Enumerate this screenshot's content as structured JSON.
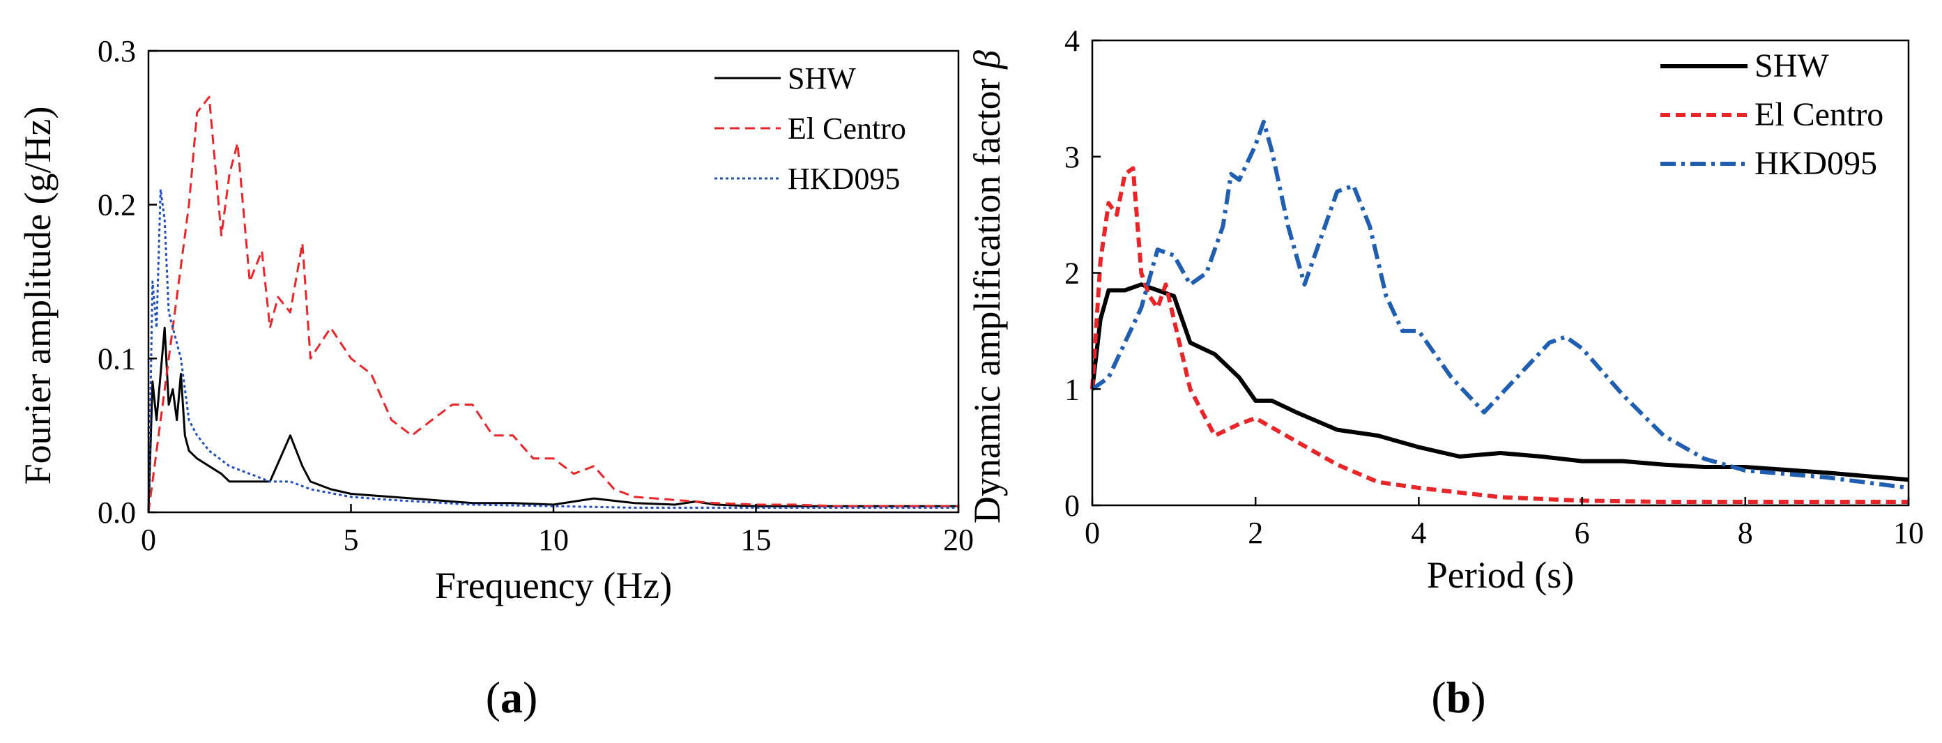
{
  "chart_data": [
    {
      "id": "a",
      "type": "line",
      "panel_label": "a",
      "title": "",
      "xlabel": "Frequency (Hz)",
      "ylabel": "Fourier amplitude (g/Hz)",
      "xlim": [
        0,
        20
      ],
      "ylim": [
        0,
        0.3
      ],
      "xticks": [
        0,
        5,
        10,
        15,
        20
      ],
      "xtick_labels": [
        "0",
        "5",
        "10",
        "15",
        "20"
      ],
      "yticks": [
        0.0,
        0.1,
        0.2,
        0.3
      ],
      "ytick_labels": [
        "0.0",
        "0.1",
        "0.2",
        "0.3"
      ],
      "grid": false,
      "legend_position": "top-right",
      "series": [
        {
          "name": "SHW",
          "color": "#000000",
          "style": "solid",
          "x": [
            0,
            0.1,
            0.2,
            0.3,
            0.4,
            0.5,
            0.6,
            0.7,
            0.8,
            0.9,
            1.0,
            1.2,
            1.5,
            1.8,
            2.0,
            2.5,
            3.0,
            3.5,
            3.8,
            4.0,
            4.5,
            5.0,
            6.0,
            7.0,
            8.0,
            9.0,
            10.0,
            11.0,
            12.0,
            13.0,
            13.5,
            14.0,
            15.0,
            16.0,
            17.0,
            18.0,
            19.0,
            20.0
          ],
          "y": [
            0.0,
            0.085,
            0.06,
            0.09,
            0.12,
            0.07,
            0.08,
            0.06,
            0.09,
            0.05,
            0.04,
            0.035,
            0.03,
            0.025,
            0.02,
            0.02,
            0.02,
            0.05,
            0.03,
            0.02,
            0.015,
            0.012,
            0.01,
            0.008,
            0.006,
            0.006,
            0.005,
            0.009,
            0.006,
            0.005,
            0.007,
            0.005,
            0.004,
            0.004,
            0.004,
            0.004,
            0.004,
            0.004
          ]
        },
        {
          "name": "El Centro",
          "color": "#e8262a",
          "style": "dashed",
          "x": [
            0,
            0.5,
            1.0,
            1.2,
            1.5,
            1.8,
            2.0,
            2.2,
            2.5,
            2.8,
            3.0,
            3.2,
            3.5,
            3.8,
            4.0,
            4.5,
            5.0,
            5.5,
            6.0,
            6.5,
            7.0,
            7.5,
            8.0,
            8.5,
            9.0,
            9.5,
            10.0,
            10.5,
            11.0,
            11.5,
            12.0,
            13.0,
            14.0,
            15.0,
            16.0,
            17.0,
            18.0,
            19.0,
            20.0
          ],
          "y": [
            0.0,
            0.1,
            0.2,
            0.26,
            0.27,
            0.18,
            0.22,
            0.24,
            0.15,
            0.17,
            0.12,
            0.14,
            0.13,
            0.175,
            0.1,
            0.12,
            0.1,
            0.09,
            0.06,
            0.05,
            0.06,
            0.07,
            0.07,
            0.05,
            0.05,
            0.035,
            0.035,
            0.025,
            0.03,
            0.015,
            0.01,
            0.008,
            0.006,
            0.005,
            0.005,
            0.004,
            0.004,
            0.004,
            0.004
          ]
        },
        {
          "name": "HKD095",
          "color": "#1f4fbf",
          "style": "dotted",
          "x": [
            0,
            0.1,
            0.2,
            0.3,
            0.4,
            0.5,
            0.6,
            0.8,
            1.0,
            1.2,
            1.5,
            2.0,
            2.5,
            3.0,
            3.5,
            4.0,
            5.0,
            6.0,
            8.0,
            10.0,
            12.0,
            14.0,
            16.0,
            18.0,
            20.0
          ],
          "y": [
            0.0,
            0.15,
            0.12,
            0.21,
            0.19,
            0.13,
            0.12,
            0.1,
            0.06,
            0.05,
            0.04,
            0.03,
            0.025,
            0.02,
            0.02,
            0.015,
            0.01,
            0.008,
            0.005,
            0.004,
            0.003,
            0.003,
            0.003,
            0.003,
            0.003
          ]
        }
      ]
    },
    {
      "id": "b",
      "type": "line",
      "panel_label": "b",
      "title": "",
      "xlabel": "Period (s)",
      "ylabel": "Dynamic amplification factor β",
      "xlim": [
        0,
        10
      ],
      "ylim": [
        0,
        4
      ],
      "xticks": [
        0,
        2,
        4,
        6,
        8,
        10
      ],
      "xtick_labels": [
        "0",
        "2",
        "4",
        "6",
        "8",
        "10"
      ],
      "yticks": [
        0,
        1,
        2,
        3,
        4
      ],
      "ytick_labels": [
        "0",
        "1",
        "2",
        "3",
        "4"
      ],
      "grid": false,
      "legend_position": "top-right",
      "series": [
        {
          "name": "SHW",
          "color": "#000000",
          "style": "solid",
          "x": [
            0,
            0.1,
            0.2,
            0.4,
            0.6,
            0.8,
            1.0,
            1.2,
            1.5,
            1.8,
            2.0,
            2.2,
            2.5,
            3.0,
            3.5,
            4.0,
            4.5,
            5.0,
            5.5,
            6.0,
            6.5,
            7.0,
            7.5,
            8.0,
            9.0,
            10.0
          ],
          "y": [
            1.0,
            1.6,
            1.85,
            1.85,
            1.9,
            1.85,
            1.8,
            1.4,
            1.3,
            1.1,
            0.9,
            0.9,
            0.8,
            0.65,
            0.6,
            0.5,
            0.42,
            0.45,
            0.42,
            0.38,
            0.38,
            0.35,
            0.33,
            0.33,
            0.28,
            0.22
          ]
        },
        {
          "name": "El Centro",
          "color": "#e8262a",
          "style": "dashed",
          "x": [
            0,
            0.1,
            0.2,
            0.3,
            0.4,
            0.5,
            0.6,
            0.7,
            0.8,
            0.9,
            1.0,
            1.2,
            1.5,
            1.8,
            2.0,
            2.5,
            3.0,
            3.5,
            4.0,
            5.0,
            6.0,
            7.0,
            8.0,
            9.0,
            10.0
          ],
          "y": [
            1.0,
            2.1,
            2.6,
            2.5,
            2.85,
            2.9,
            2.0,
            1.8,
            1.7,
            1.9,
            1.6,
            1.0,
            0.6,
            0.7,
            0.75,
            0.55,
            0.35,
            0.2,
            0.15,
            0.07,
            0.04,
            0.03,
            0.03,
            0.03,
            0.03
          ]
        },
        {
          "name": "HKD095",
          "color": "#1f5eb0",
          "style": "dashdot",
          "x": [
            0,
            0.2,
            0.4,
            0.6,
            0.8,
            1.0,
            1.2,
            1.4,
            1.6,
            1.7,
            1.8,
            2.0,
            2.1,
            2.2,
            2.4,
            2.6,
            2.8,
            3.0,
            3.2,
            3.4,
            3.6,
            3.8,
            4.0,
            4.4,
            4.8,
            5.2,
            5.6,
            5.8,
            6.0,
            6.5,
            7.0,
            7.5,
            8.0,
            8.5,
            9.0,
            10.0
          ],
          "y": [
            1.0,
            1.1,
            1.4,
            1.7,
            2.2,
            2.15,
            1.9,
            2.0,
            2.4,
            2.85,
            2.8,
            3.1,
            3.3,
            3.05,
            2.4,
            1.9,
            2.3,
            2.7,
            2.75,
            2.4,
            1.8,
            1.5,
            1.5,
            1.1,
            0.8,
            1.1,
            1.4,
            1.45,
            1.35,
            0.95,
            0.6,
            0.4,
            0.3,
            0.27,
            0.24,
            0.15
          ]
        }
      ]
    }
  ]
}
